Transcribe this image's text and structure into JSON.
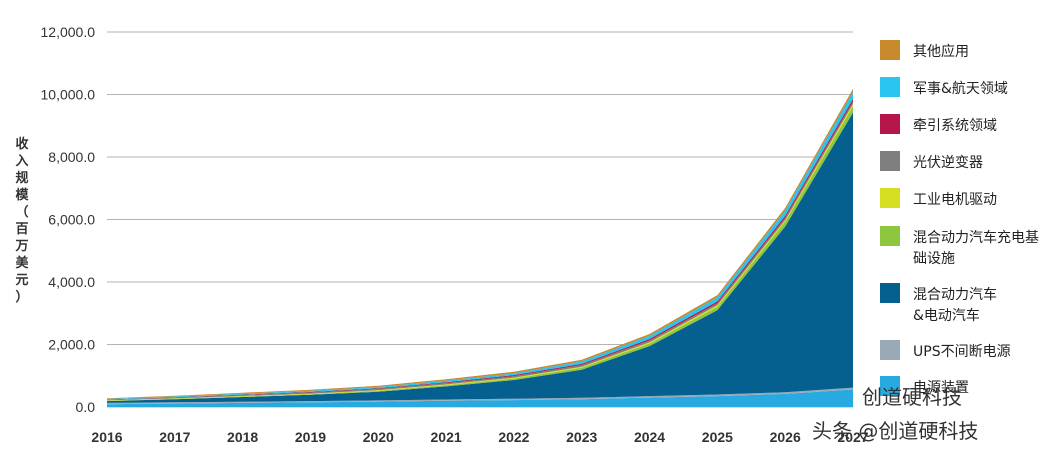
{
  "chart_data": {
    "type": "area",
    "stacked": true,
    "x": [
      "2016",
      "2017",
      "2018",
      "2019",
      "2020",
      "2021",
      "2022",
      "2023",
      "2024",
      "2025",
      "2026",
      "2027"
    ],
    "ylabel": "收入规模（百万美元）",
    "ylim": [
      0,
      12000
    ],
    "yticks": [
      "0.0",
      "2,000.0",
      "4,000.0",
      "6,000.0",
      "8,000.0",
      "10,000.0",
      "12,000.0"
    ],
    "grid": true,
    "legend_position": "right",
    "series": [
      {
        "name": "电源装置",
        "color": "#27aae1",
        "values": [
          90,
          110,
          130,
          150,
          170,
          200,
          220,
          250,
          300,
          350,
          420,
          560
        ]
      },
      {
        "name": "UPS不间断电源",
        "color": "#9aa9b6",
        "values": [
          40,
          40,
          40,
          40,
          40,
          40,
          45,
          45,
          50,
          50,
          55,
          60
        ]
      },
      {
        "name": "混合动力汽车&电动汽车",
        "color": "#055f8f",
        "values": [
          60,
          100,
          150,
          200,
          280,
          420,
          600,
          900,
          1600,
          2700,
          5300,
          8800
        ]
      },
      {
        "name": "混合动力汽车充电基础设施",
        "color": "#8dc63f",
        "values": [
          5,
          8,
          12,
          18,
          25,
          35,
          45,
          60,
          80,
          110,
          150,
          200
        ]
      },
      {
        "name": "工业电机驱动",
        "color": "#d7df23",
        "values": [
          15,
          18,
          20,
          22,
          25,
          28,
          30,
          35,
          40,
          50,
          60,
          80
        ]
      },
      {
        "name": "光伏逆变器",
        "color": "#7f7f7f",
        "values": [
          20,
          25,
          30,
          35,
          40,
          45,
          50,
          55,
          60,
          65,
          70,
          80
        ]
      },
      {
        "name": "牵引系统领域",
        "color": "#b5174b",
        "values": [
          10,
          12,
          15,
          18,
          22,
          26,
          30,
          35,
          45,
          55,
          65,
          80
        ]
      },
      {
        "name": "军事&航天领域",
        "color": "#29c4f0",
        "values": [
          20,
          25,
          30,
          35,
          40,
          50,
          60,
          80,
          100,
          130,
          170,
          220
        ]
      },
      {
        "name": "其他应用",
        "color": "#c68a2c",
        "values": [
          20,
          25,
          30,
          35,
          40,
          45,
          50,
          55,
          60,
          70,
          80,
          100
        ]
      }
    ],
    "legend_order": [
      8,
      7,
      6,
      5,
      4,
      3,
      2,
      1,
      0
    ]
  },
  "watermark": {
    "text_inline": "创道硬科技",
    "text_bottom": "头条 @创道硬科技"
  }
}
